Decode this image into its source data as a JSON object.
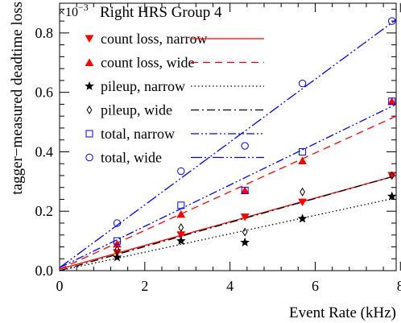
{
  "chart_data": {
    "type": "scatter",
    "title": "Right HRS Group 4",
    "xlabel": "Event Rate (kHz)",
    "ylabel": "tagger−measured deadtime loss",
    "y_multiplier": "×10",
    "y_multiplier_exp": "−3",
    "xlim": [
      0,
      7.9
    ],
    "ylim": [
      0,
      0.9
    ],
    "x_ticks": [
      0,
      2,
      4,
      6,
      8
    ],
    "y_ticks": [
      0,
      0.2,
      0.4,
      0.6,
      0.8
    ],
    "x_tick_labels": [
      "0",
      "2",
      "4",
      "6",
      "8"
    ],
    "y_tick_labels": [
      "0.0",
      "0.2",
      "0.4",
      "0.6",
      "0.8"
    ],
    "grid": false,
    "legend_position": "top-left",
    "series": [
      {
        "name": "count loss, narrow",
        "color": "#ff0000",
        "marker": "triangle-down",
        "marker_fill": "filled",
        "line_style": "solid",
        "x": [
          1.35,
          2.85,
          4.35,
          5.7,
          7.8
        ],
        "y": [
          0.06,
          0.12,
          0.18,
          0.23,
          0.32
        ],
        "fit": [
          [
            0,
            0.005
          ],
          [
            7.9,
            0.32
          ]
        ]
      },
      {
        "name": "count loss, wide",
        "color": "#ff0000",
        "marker": "triangle-up",
        "marker_fill": "filled",
        "line_style": "dashed",
        "x": [
          1.35,
          2.85,
          4.35,
          5.7,
          7.8
        ],
        "y": [
          0.09,
          0.19,
          0.27,
          0.37,
          0.57
        ],
        "fit": [
          [
            0,
            0.005
          ],
          [
            7.9,
            0.52
          ]
        ]
      },
      {
        "name": "pileup, narrow",
        "color": "#000000",
        "marker": "star",
        "marker_fill": "filled",
        "line_style": "dotted",
        "x": [
          1.35,
          2.85,
          4.35,
          5.7,
          7.8
        ],
        "y": [
          0.045,
          0.1,
          0.095,
          0.175,
          0.25
        ],
        "fit": [
          [
            0,
            0.0
          ],
          [
            7.9,
            0.245
          ]
        ]
      },
      {
        "name": "pileup, wide",
        "color": "#000000",
        "marker": "diamond",
        "marker_fill": "open",
        "line_style": "dashdot",
        "x": [
          1.35,
          2.85,
          4.35,
          5.7,
          7.8
        ],
        "y": [
          0.07,
          0.145,
          0.13,
          0.265,
          0.32
        ],
        "fit": [
          [
            0,
            0.0
          ],
          [
            7.9,
            0.32
          ]
        ]
      },
      {
        "name": "total, narrow",
        "color": "#0000ff",
        "marker": "square",
        "marker_fill": "open",
        "line_style": "dashdotdot",
        "x": [
          1.35,
          2.85,
          4.35,
          5.7,
          7.8
        ],
        "y": [
          0.1,
          0.22,
          0.27,
          0.4,
          0.57
        ],
        "fit": [
          [
            0,
            0.01
          ],
          [
            7.9,
            0.56
          ]
        ]
      },
      {
        "name": "total, wide",
        "color": "#0000ff",
        "marker": "circle",
        "marker_fill": "open",
        "line_style": "dashdotdotlong",
        "x": [
          1.35,
          2.85,
          4.35,
          5.7,
          7.8
        ],
        "y": [
          0.16,
          0.335,
          0.42,
          0.63,
          0.84
        ],
        "fit": [
          [
            0,
            0.01
          ],
          [
            7.9,
            0.845
          ]
        ]
      }
    ]
  }
}
